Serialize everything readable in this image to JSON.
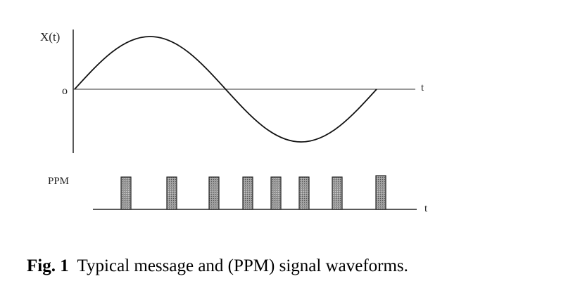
{
  "figure": {
    "x_label": "X(t)",
    "origin_label": "o",
    "time_label": "t",
    "ppm_label": "PPM",
    "ppm_time_label": "t",
    "caption": {
      "label": "Fig. 1",
      "text": "Typical message and (PPM) signal waveforms."
    }
  }
}
